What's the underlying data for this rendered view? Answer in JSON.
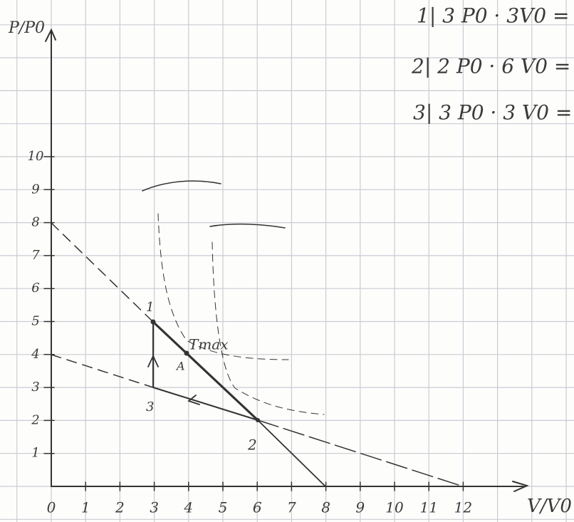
{
  "axes": {
    "y_label": "P/P0",
    "x_label": "V/V0",
    "x_ticks": [
      "0",
      "1",
      "2",
      "3",
      "4",
      "5",
      "6",
      "7",
      "8",
      "9",
      "10",
      "11",
      "12"
    ],
    "y_ticks": [
      "1",
      "2",
      "3",
      "4",
      "5",
      "6",
      "7",
      "8",
      "9",
      "10"
    ]
  },
  "equations": [
    "1| 3 P0 · 3V0 =",
    "2| 2 P0 · 6 V0 =",
    "3| 3 P0 · 3 V0 ="
  ],
  "labels": {
    "tmax": "Tmax",
    "a": "A",
    "point_1": "1",
    "point_2": "2",
    "point_3": "3"
  }
}
